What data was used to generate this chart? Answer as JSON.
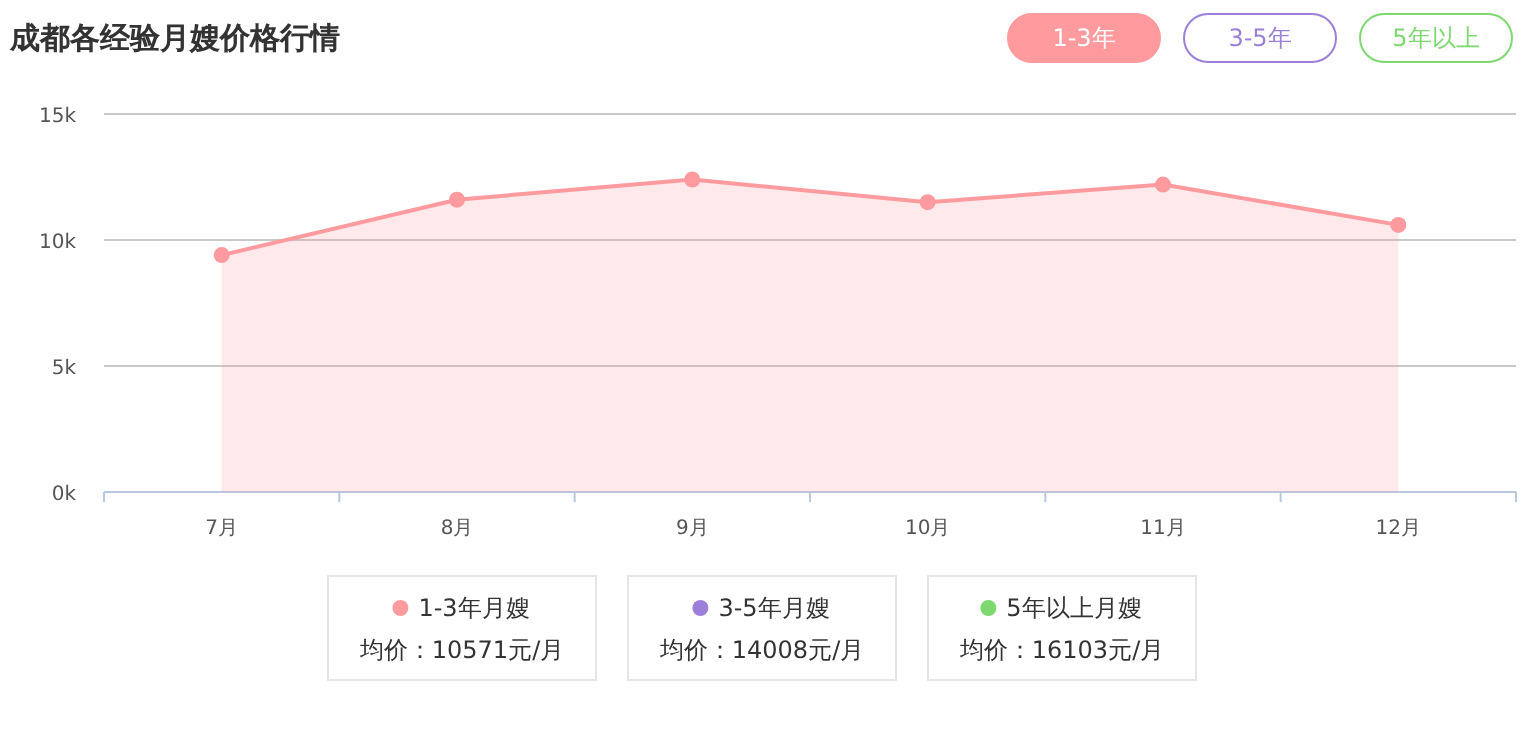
{
  "chart_data": {
    "type": "area",
    "title": "成都各经验月嫂价格行情",
    "categories": [
      "7月",
      "8月",
      "9月",
      "10月",
      "11月",
      "12月"
    ],
    "series": [
      {
        "name": "1-3年月嫂",
        "color": "#ff9a9e",
        "values": [
          9400,
          11600,
          12400,
          11500,
          12200,
          10600
        ]
      },
      {
        "name": "3-5年月嫂",
        "color": "#9b7fd8",
        "values": [
          null,
          null,
          null,
          null,
          null,
          null
        ]
      },
      {
        "name": "5年以上月嫂",
        "color": "#7dd870",
        "values": [
          null,
          null,
          null,
          null,
          null,
          null
        ]
      }
    ],
    "ylim": [
      0,
      15000
    ],
    "yticks": [
      {
        "value": 0,
        "label": "0k"
      },
      {
        "value": 5000,
        "label": "5k"
      },
      {
        "value": 10000,
        "label": "10k"
      },
      {
        "value": 15000,
        "label": "15k"
      }
    ],
    "grid": "y",
    "marker": "circle",
    "legend": "bottom",
    "annotations": [
      "均价：10571元/月",
      "均价：14008元/月",
      "均价：16103元/月",
      "1-3年",
      "3-5年",
      "5年以上"
    ]
  }
}
